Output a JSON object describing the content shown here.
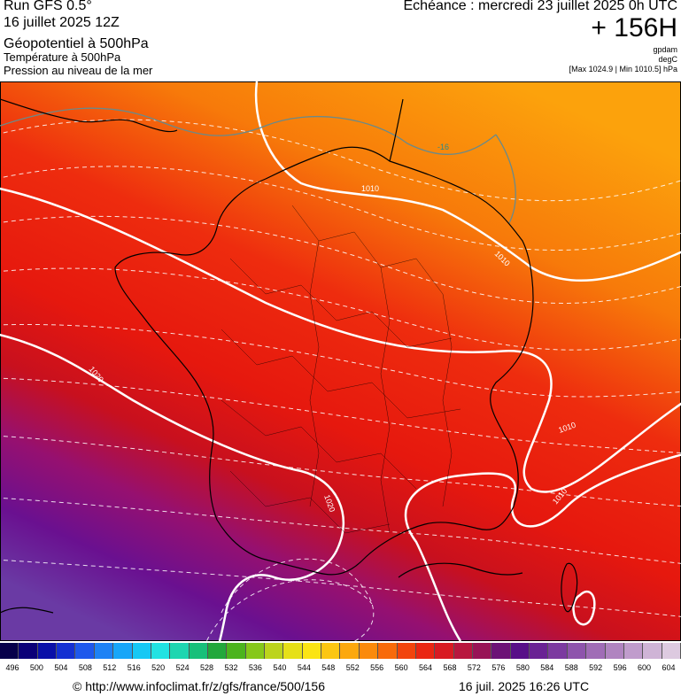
{
  "header": {
    "run_title": "Run GFS 0.5°",
    "run_date": "16 juillet 2025 12Z",
    "param_geopotential": "Géopotentiel à 500hPa",
    "param_temperature": "Température à 500hPa",
    "param_pressure": "Pression au niveau de la mer",
    "echeance": "Echéance : mercredi 23 juillet 2025 0h UTC",
    "lead_time": "+ 156H",
    "unit_geopotential": "gpdam",
    "unit_temperature": "degC",
    "pressure_range": "[Max 1024.9 | Min 1010.5] hPa"
  },
  "map": {
    "isobar_labels": [
      "1010",
      "1010",
      "1020",
      "1020",
      "1010",
      "1010"
    ],
    "isotherm_labels": [
      "-16"
    ],
    "colors": {
      "isobar": "#ffffff",
      "isotherm": "#ffffff",
      "border": "#000000",
      "zone_orange": "#fb9a0e",
      "zone_red": "#ee1c10",
      "zone_purple": "#64109a"
    }
  },
  "colorbar": {
    "values": [
      "496",
      "500",
      "504",
      "508",
      "512",
      "516",
      "520",
      "524",
      "528",
      "532",
      "536",
      "540",
      "544",
      "548",
      "552",
      "556",
      "560",
      "564",
      "568",
      "572",
      "576",
      "580",
      "584",
      "588",
      "592",
      "596",
      "600",
      "604"
    ],
    "colors": [
      "#07004a",
      "#0b0078",
      "#0a10a8",
      "#1430d2",
      "#1e58ec",
      "#1e82f5",
      "#18a6f8",
      "#16c8f4",
      "#22e2e2",
      "#1ed6b0",
      "#18c07a",
      "#22a83c",
      "#4cb41e",
      "#86c81a",
      "#bcd41c",
      "#e6e018",
      "#fbe414",
      "#fcc612",
      "#fca80e",
      "#fb8a0c",
      "#f86a0a",
      "#f2440c",
      "#ea2612",
      "#d81a22",
      "#b8163e",
      "#981456",
      "#6c1276",
      "#581088",
      "#6a2294",
      "#7c3aa0",
      "#8e54ac",
      "#a06cb6",
      "#b084c0",
      "#c09ccc",
      "#cfb4d6",
      "#ddcae0"
    ]
  },
  "footer": {
    "url": "© http://www.infoclimat.fr/z/gfs/france/500/156",
    "generated": "16 juil. 2025 16:26 UTC"
  }
}
